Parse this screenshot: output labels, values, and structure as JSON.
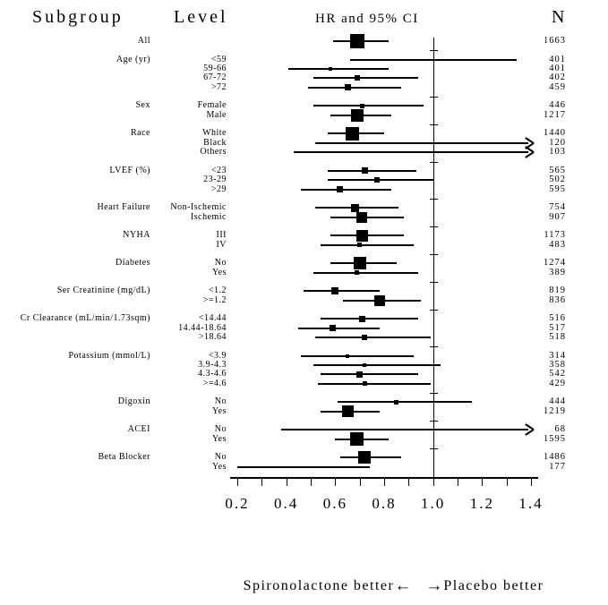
{
  "header": {
    "subgroup": "Subgroup",
    "level": "Level",
    "ci": "HR and 95% CI",
    "n": "N"
  },
  "footer": {
    "left": "Spironolactone better",
    "left_arrow": "←",
    "right_arrow": "→",
    "right": "Placebo better"
  },
  "colors": {
    "ink": "#000000",
    "background": "#ffffff"
  },
  "chart_data": {
    "type": "forest",
    "title": "HR and 95% CI",
    "x_axis": {
      "min": 0.2,
      "max": 1.4,
      "tick_step": 0.1,
      "label_ticks": [
        "0.2",
        "0.4",
        "0.6",
        "0.8",
        "1.0",
        "1.2",
        "1.4"
      ],
      "reference_line": 1.0
    },
    "annotations": {
      "left": "Spironolactone better",
      "right": "Placebo better"
    },
    "groups": [
      {
        "subgroup": "All",
        "rows": [
          {
            "level": "",
            "n": 1663,
            "hr": 0.69,
            "lo": 0.59,
            "hi": 0.82,
            "marker": 16
          }
        ]
      },
      {
        "subgroup": "Age (yr)",
        "rows": [
          {
            "level": "<59",
            "n": 401,
            "hr": null,
            "lo": 0.66,
            "hi": 1.34,
            "marker": 0
          },
          {
            "level": "59-66",
            "n": 401,
            "hr": 0.58,
            "lo": 0.41,
            "hi": 0.82,
            "marker": 4
          },
          {
            "level": "67-72",
            "n": 402,
            "hr": 0.69,
            "lo": 0.51,
            "hi": 0.94,
            "marker": 6
          },
          {
            "level": ">72",
            "n": 459,
            "hr": 0.65,
            "lo": 0.49,
            "hi": 0.87,
            "marker": 7
          }
        ]
      },
      {
        "subgroup": "Sex",
        "rows": [
          {
            "level": "Female",
            "n": 446,
            "hr": 0.71,
            "lo": 0.51,
            "hi": 0.96,
            "marker": 5
          },
          {
            "level": "Male",
            "n": 1217,
            "hr": 0.69,
            "lo": 0.58,
            "hi": 0.83,
            "marker": 14
          }
        ]
      },
      {
        "subgroup": "Race",
        "rows": [
          {
            "level": "White",
            "n": 1440,
            "hr": 0.67,
            "lo": 0.57,
            "hi": 0.8,
            "marker": 15
          },
          {
            "level": "Black",
            "n": 120,
            "hr": null,
            "lo": 0.52,
            "hi": null,
            "marker": 0,
            "arrow": true
          },
          {
            "level": "Others",
            "n": 103,
            "hr": null,
            "lo": 0.43,
            "hi": null,
            "marker": 0,
            "arrow": true
          }
        ]
      },
      {
        "subgroup": "LVEF (%)",
        "rows": [
          {
            "level": "<23",
            "n": 565,
            "hr": 0.72,
            "lo": 0.57,
            "hi": 0.93,
            "marker": 7
          },
          {
            "level": "23-29",
            "n": 502,
            "hr": 0.77,
            "lo": 0.57,
            "hi": 1.0,
            "marker": 6
          },
          {
            "level": ">29",
            "n": 595,
            "hr": 0.62,
            "lo": 0.46,
            "hi": 0.83,
            "marker": 7
          }
        ]
      },
      {
        "subgroup": "Heart Failure",
        "rows": [
          {
            "level": "Non-Ischemic",
            "n": 754,
            "hr": 0.68,
            "lo": 0.52,
            "hi": 0.86,
            "marker": 9
          },
          {
            "level": "Ischemic",
            "n": 907,
            "hr": 0.71,
            "lo": 0.58,
            "hi": 0.88,
            "marker": 12
          }
        ]
      },
      {
        "subgroup": "NYHA",
        "rows": [
          {
            "level": "III",
            "n": 1173,
            "hr": 0.71,
            "lo": 0.58,
            "hi": 0.88,
            "marker": 13
          },
          {
            "level": "IV",
            "n": 483,
            "hr": 0.7,
            "lo": 0.54,
            "hi": 0.92,
            "marker": 5
          }
        ]
      },
      {
        "subgroup": "Diabetes",
        "rows": [
          {
            "level": "No",
            "n": 1274,
            "hr": 0.7,
            "lo": 0.58,
            "hi": 0.85,
            "marker": 14
          },
          {
            "level": "Yes",
            "n": 389,
            "hr": 0.69,
            "lo": 0.51,
            "hi": 0.94,
            "marker": 5
          }
        ]
      },
      {
        "subgroup": "Ser Creatinine (mg/dL)",
        "rows": [
          {
            "level": "<1.2",
            "n": 819,
            "hr": 0.6,
            "lo": 0.47,
            "hi": 0.78,
            "marker": 8
          },
          {
            "level": ">=1.2",
            "n": 836,
            "hr": 0.78,
            "lo": 0.63,
            "hi": 0.95,
            "marker": 12
          }
        ]
      },
      {
        "subgroup": "Cr Clearance (mL/min/1.73sqm)",
        "rows": [
          {
            "level": "<14.44",
            "n": 516,
            "hr": 0.71,
            "lo": 0.54,
            "hi": 0.94,
            "marker": 7
          },
          {
            "level": "14.44-18.64",
            "n": 517,
            "hr": 0.59,
            "lo": 0.45,
            "hi": 0.78,
            "marker": 7
          },
          {
            "level": ">18.64",
            "n": 518,
            "hr": 0.72,
            "lo": 0.52,
            "hi": 0.99,
            "marker": 6
          }
        ]
      },
      {
        "subgroup": "Potassium (mmol/L)",
        "rows": [
          {
            "level": "<3.9",
            "n": 314,
            "hr": 0.65,
            "lo": 0.46,
            "hi": 0.92,
            "marker": 4
          },
          {
            "level": "3.9-4.3",
            "n": 358,
            "hr": 0.72,
            "lo": 0.51,
            "hi": 1.03,
            "marker": 4
          },
          {
            "level": "4.3-4.6",
            "n": 542,
            "hr": 0.7,
            "lo": 0.54,
            "hi": 0.94,
            "marker": 7
          },
          {
            "level": ">=4.6",
            "n": 429,
            "hr": 0.72,
            "lo": 0.53,
            "hi": 0.99,
            "marker": 5
          }
        ]
      },
      {
        "subgroup": "Digoxin",
        "rows": [
          {
            "level": "No",
            "n": 444,
            "hr": 0.85,
            "lo": 0.61,
            "hi": 1.16,
            "marker": 5
          },
          {
            "level": "Yes",
            "n": 1219,
            "hr": 0.65,
            "lo": 0.54,
            "hi": 0.78,
            "marker": 13
          }
        ]
      },
      {
        "subgroup": "ACEI",
        "rows": [
          {
            "level": "No",
            "n": 68,
            "hr": null,
            "lo": 0.38,
            "hi": null,
            "marker": 0,
            "arrow": true
          },
          {
            "level": "Yes",
            "n": 1595,
            "hr": 0.69,
            "lo": 0.6,
            "hi": 0.82,
            "marker": 15
          }
        ]
      },
      {
        "subgroup": "Beta Blocker",
        "rows": [
          {
            "level": "No",
            "n": 1486,
            "hr": 0.72,
            "lo": 0.62,
            "hi": 0.87,
            "marker": 14
          },
          {
            "level": "Yes",
            "n": 177,
            "hr": null,
            "lo": 0.2,
            "hi": 0.74,
            "marker": 0
          }
        ]
      }
    ]
  }
}
